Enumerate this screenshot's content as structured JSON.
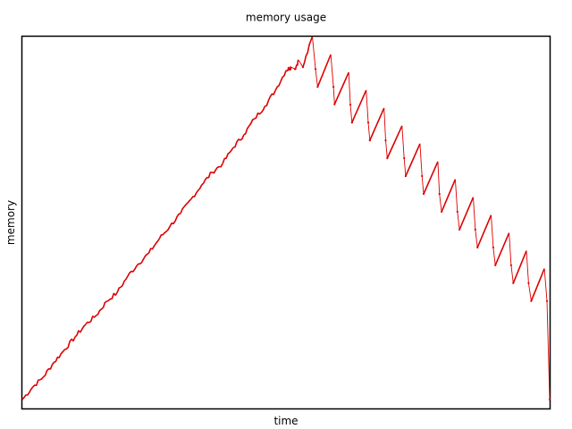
{
  "chart_data": {
    "type": "line",
    "title": "memory usage",
    "xlabel": "time",
    "ylabel": "memory",
    "grid": false,
    "legend": "none",
    "x_ticks_shown": false,
    "y_ticks_shown": false,
    "xlim": [
      0,
      1
    ],
    "ylim": [
      0,
      1
    ],
    "series": [
      {
        "color": "#dd0000",
        "points": [
          [
            0.0,
            0.024
          ],
          [
            0.02,
            0.058
          ],
          [
            0.04,
            0.085
          ],
          [
            0.06,
            0.124
          ],
          [
            0.08,
            0.158
          ],
          [
            0.1,
            0.192
          ],
          [
            0.12,
            0.226
          ],
          [
            0.14,
            0.25
          ],
          [
            0.16,
            0.288
          ],
          [
            0.18,
            0.312
          ],
          [
            0.2,
            0.356
          ],
          [
            0.22,
            0.389
          ],
          [
            0.24,
            0.418
          ],
          [
            0.26,
            0.457
          ],
          [
            0.28,
            0.49
          ],
          [
            0.3,
            0.524
          ],
          [
            0.32,
            0.563
          ],
          [
            0.34,
            0.601
          ],
          [
            0.36,
            0.635
          ],
          [
            0.38,
            0.659
          ],
          [
            0.4,
            0.702
          ],
          [
            0.42,
            0.736
          ],
          [
            0.44,
            0.779
          ],
          [
            0.46,
            0.813
          ],
          [
            0.48,
            0.856
          ],
          [
            0.5,
            0.909
          ],
          [
            0.507,
            0.916
          ],
          [
            0.51,
            0.918
          ],
          [
            0.517,
            0.913
          ],
          [
            0.524,
            0.937
          ],
          [
            0.532,
            0.918
          ],
          [
            0.55,
            1.0
          ],
          [
            0.556,
            0.913
          ],
          [
            0.56,
            0.865
          ],
          [
            0.585,
            0.952
          ],
          [
            0.59,
            0.865
          ],
          [
            0.592,
            0.818
          ],
          [
            0.619,
            0.904
          ],
          [
            0.622,
            0.817
          ],
          [
            0.625,
            0.769
          ],
          [
            0.652,
            0.856
          ],
          [
            0.656,
            0.769
          ],
          [
            0.659,
            0.721
          ],
          [
            0.686,
            0.808
          ],
          [
            0.689,
            0.721
          ],
          [
            0.692,
            0.673
          ],
          [
            0.72,
            0.76
          ],
          [
            0.724,
            0.673
          ],
          [
            0.727,
            0.625
          ],
          [
            0.754,
            0.712
          ],
          [
            0.758,
            0.625
          ],
          [
            0.761,
            0.577
          ],
          [
            0.788,
            0.664
          ],
          [
            0.791,
            0.577
          ],
          [
            0.795,
            0.529
          ],
          [
            0.821,
            0.616
          ],
          [
            0.825,
            0.529
          ],
          [
            0.829,
            0.481
          ],
          [
            0.855,
            0.568
          ],
          [
            0.859,
            0.481
          ],
          [
            0.863,
            0.433
          ],
          [
            0.889,
            0.52
          ],
          [
            0.893,
            0.433
          ],
          [
            0.897,
            0.385
          ],
          [
            0.923,
            0.472
          ],
          [
            0.927,
            0.385
          ],
          [
            0.931,
            0.337
          ],
          [
            0.956,
            0.424
          ],
          [
            0.96,
            0.337
          ],
          [
            0.965,
            0.289
          ],
          [
            0.99,
            0.376
          ],
          [
            0.995,
            0.289
          ],
          [
            1.0,
            0.024
          ]
        ]
      }
    ]
  }
}
